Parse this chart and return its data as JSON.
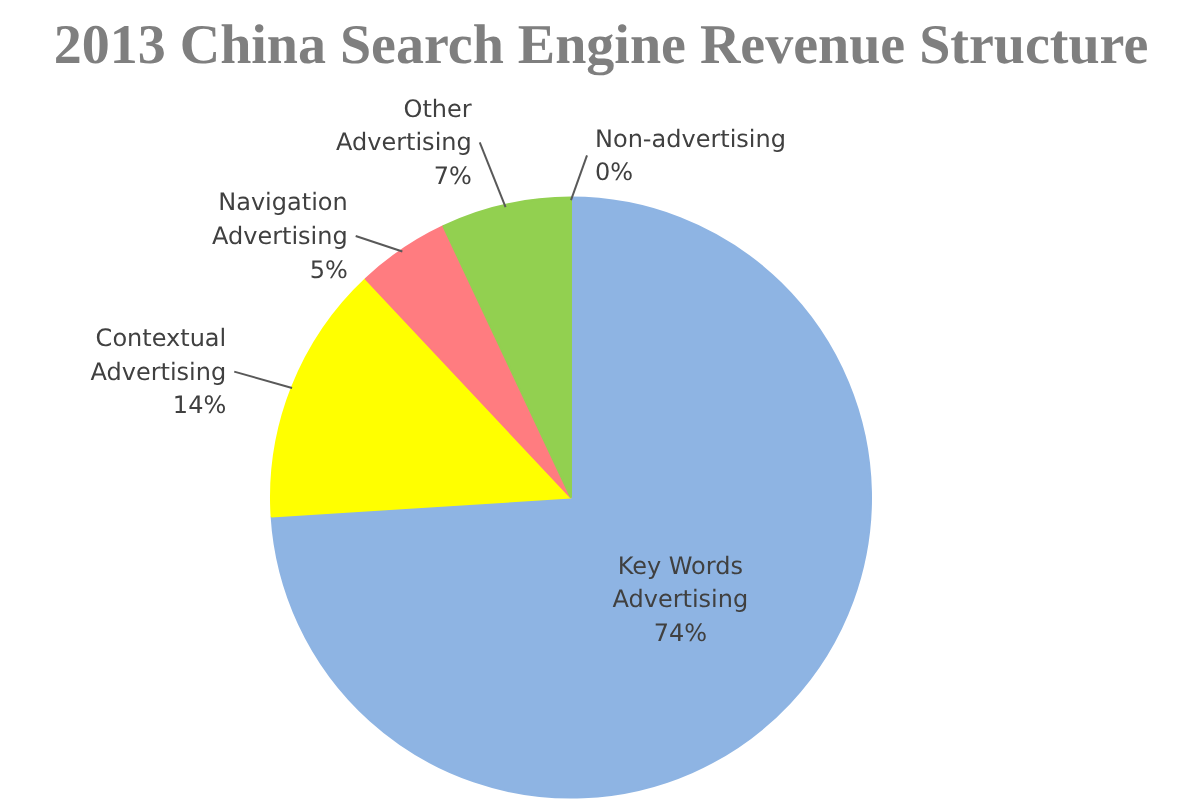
{
  "chart_data": {
    "type": "pie",
    "title": "2013 China Search Engine Revenue Structure",
    "categories": [
      "Non-advertising",
      "Key Words Advertising",
      "Contextual Advertising",
      "Navigation Advertising",
      "Other Advertising"
    ],
    "values": [
      0,
      74,
      14,
      5,
      7
    ],
    "colors": [
      "#4bacc6",
      "#8eb4e3",
      "#ffff00",
      "#ff7c80",
      "#92d050"
    ],
    "value_labels": [
      "0%",
      "74%",
      "14%",
      "5%",
      "7%"
    ]
  }
}
